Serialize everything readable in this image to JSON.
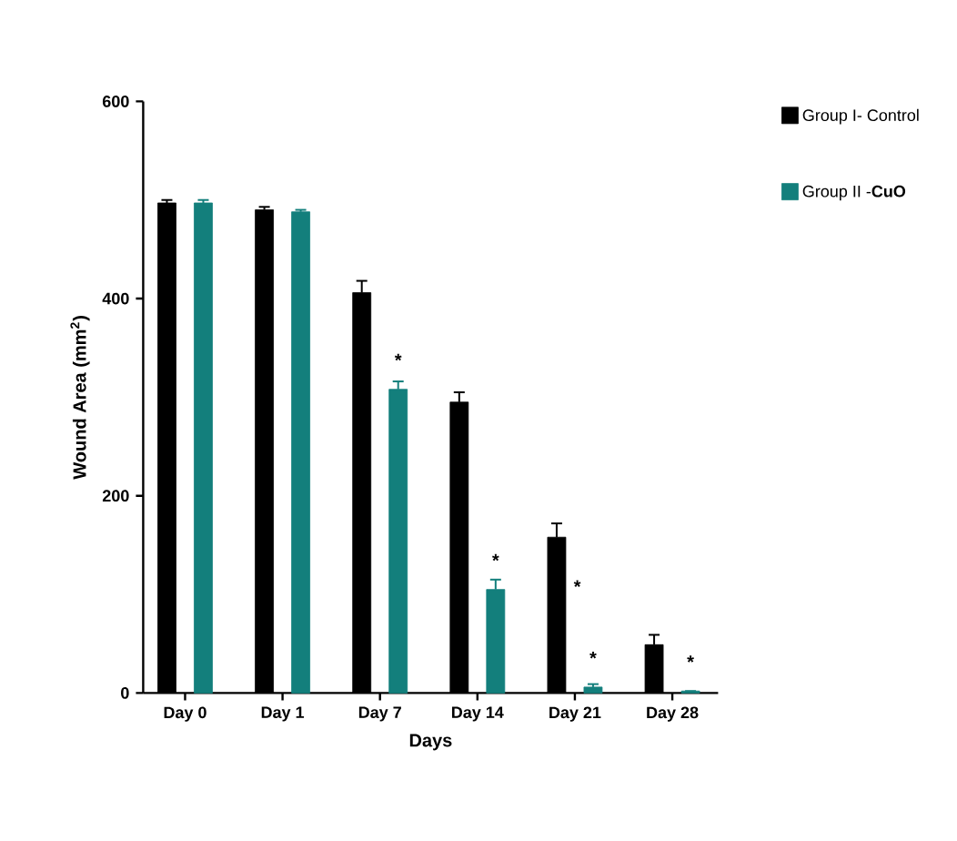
{
  "chart_data": {
    "type": "bar",
    "xlabel": "Days",
    "ylabel": "Wound Area (mm$^{2}$)",
    "categories": [
      "Day 0",
      "Day 1",
      "Day 7",
      "Day 14",
      "Day 21",
      "Day 28"
    ],
    "series": [
      {
        "name": "Group I- Control",
        "color": "#000000",
        "values": [
          497,
          490,
          406,
          295,
          158,
          49
        ],
        "errors": [
          3,
          3,
          12,
          10,
          14,
          10
        ]
      },
      {
        "name": "Group II -**CuO**",
        "color": "#137f7c",
        "values": [
          497,
          488,
          308,
          105,
          6,
          2
        ],
        "errors": [
          3,
          2,
          8,
          10,
          3,
          null
        ]
      }
    ],
    "ylim": [
      0,
      600
    ],
    "yticks": [
      0,
      200,
      400,
      600
    ],
    "grid": false,
    "legend": "top right",
    "annotations": [
      {
        "text": "*",
        "x": "Day 7",
        "y": 308
      },
      {
        "text": "*",
        "x": "Day 14",
        "y": 105
      },
      "*",
      {
        "text": "*",
        "x": "Day 21",
        "y": 6
      },
      {
        "text": "*",
        "x": "Day 28",
        "y": 2
      }
    ]
  }
}
